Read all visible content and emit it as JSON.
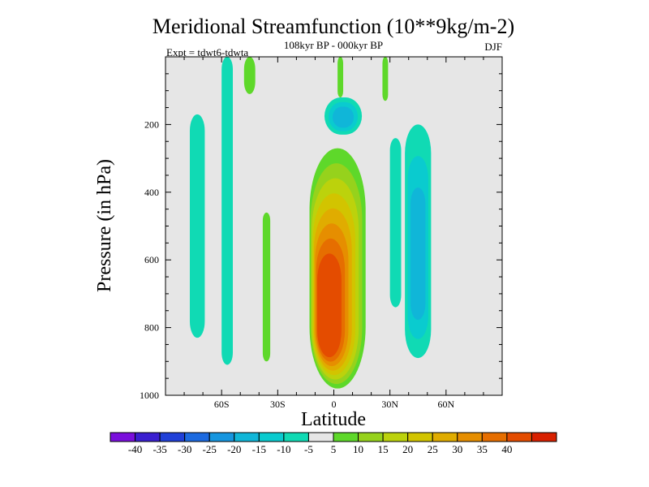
{
  "chart_data": {
    "type": "heatmap",
    "title": "Meridional Streamfunction (10**9kg/m-2)",
    "subtitle_center": "108kyr BP - 000kyr BP",
    "subtitle_left": "Expt = tdwt6-tdwta",
    "subtitle_right": "DJF",
    "xlabel": "Latitude",
    "ylabel": "Pressure (in hPa)",
    "xlim": [
      -90,
      90
    ],
    "ylim": [
      0,
      1000
    ],
    "x_ticks": [
      {
        "value": -60,
        "label": "60S"
      },
      {
        "value": -30,
        "label": "30S"
      },
      {
        "value": 0,
        "label": "0"
      },
      {
        "value": 30,
        "label": "30N"
      },
      {
        "value": 60,
        "label": "60N"
      }
    ],
    "y_ticks": [
      {
        "value": 200,
        "label": "200"
      },
      {
        "value": 400,
        "label": "400"
      },
      {
        "value": 600,
        "label": "600"
      },
      {
        "value": 800,
        "label": "800"
      },
      {
        "value": 1000,
        "label": "1000"
      }
    ],
    "background_color": "#e6e6e6",
    "colorbar": {
      "colors": [
        "#7a0fdc",
        "#3a1fd0",
        "#2040d8",
        "#1c6ae0",
        "#1696e0",
        "#10b6d8",
        "#0acbcf",
        "#10dab4",
        "#e6e6e6",
        "#5ed82a",
        "#96d21c",
        "#bcd20c",
        "#d2c400",
        "#e0ac00",
        "#e68e00",
        "#e66e00",
        "#e44c00",
        "#d82000"
      ],
      "labels": [
        "-40",
        "-35",
        "-30",
        "-25",
        "-20",
        "-15",
        "-10",
        "-5",
        "5",
        "10",
        "15",
        "20",
        "25",
        "30",
        "35",
        "40"
      ]
    },
    "features": [
      {
        "name": "equatorial-cell",
        "center_lat": -3,
        "center_p": 750,
        "lat_range": [
          -13,
          17
        ],
        "p_range": [
          270,
          980
        ],
        "peak_value": 40
      },
      {
        "name": "upper-negative-cell",
        "center_lat": 5,
        "center_p": 180,
        "lat_range": [
          -5,
          15
        ],
        "p_range": [
          120,
          230
        ],
        "peak_value": -15
      },
      {
        "name": "southern-negative-band",
        "lat_range": [
          -77,
          -69
        ],
        "p_range": [
          170,
          830
        ],
        "peak_value": -5
      },
      {
        "name": "southern-negative-column",
        "lat_range": [
          -60,
          -54
        ],
        "p_range": [
          0,
          910
        ],
        "peak_value": -5
      },
      {
        "name": "southern-positive-streak-upper",
        "lat_range": [
          -48,
          -42
        ],
        "p_range": [
          0,
          110
        ],
        "peak_value": 5
      },
      {
        "name": "southern-positive-streak-mid",
        "lat_range": [
          -38,
          -34
        ],
        "p_range": [
          460,
          900
        ],
        "peak_value": 5
      },
      {
        "name": "equatorial-upper-positive-streak",
        "lat_range": [
          2,
          5
        ],
        "p_range": [
          0,
          120
        ],
        "peak_value": 5
      },
      {
        "name": "northern-upper-positive-streak",
        "lat_range": [
          26,
          29
        ],
        "p_range": [
          0,
          130
        ],
        "peak_value": 5
      },
      {
        "name": "northern-negative-cell",
        "center_lat": 45,
        "center_p": 600,
        "lat_range": [
          38,
          52
        ],
        "p_range": [
          200,
          890
        ],
        "peak_value": -15
      },
      {
        "name": "northern-negative-cell-west",
        "lat_range": [
          30,
          36
        ],
        "p_range": [
          240,
          740
        ],
        "peak_value": -5
      }
    ]
  }
}
